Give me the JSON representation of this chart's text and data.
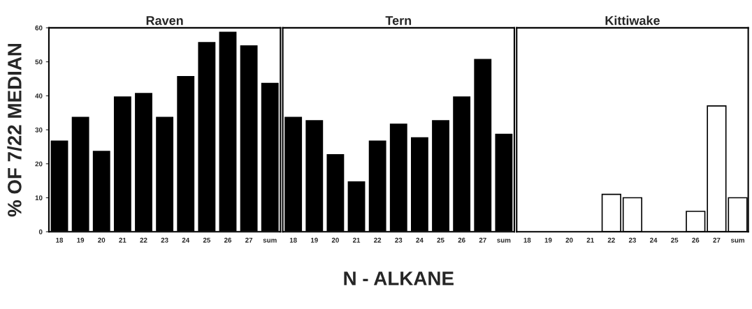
{
  "chart_data": [
    {
      "type": "bar",
      "title": "Raven",
      "ylabel": "% OF 7/22 MEDIAN",
      "categories": [
        "18",
        "19",
        "20",
        "21",
        "22",
        "23",
        "24",
        "25",
        "26",
        "27",
        "sum"
      ],
      "values": [
        27,
        34,
        24,
        40,
        41,
        34,
        46,
        56,
        59,
        55,
        44
      ],
      "color": "#000000",
      "ylim": [
        0,
        60
      ],
      "yticks": [
        0,
        10,
        20,
        30,
        40,
        50,
        60
      ]
    },
    {
      "type": "bar",
      "title": "Tern",
      "xlabel": "N - ALKANE",
      "categories": [
        "18",
        "19",
        "20",
        "21",
        "22",
        "23",
        "24",
        "25",
        "26",
        "27",
        "sum"
      ],
      "values": [
        34,
        33,
        23,
        15,
        27,
        32,
        28,
        33,
        40,
        51,
        29
      ],
      "color": "#000000",
      "ylim": [
        0,
        60
      ],
      "yticks": [
        0,
        10,
        20,
        30,
        40,
        50,
        60
      ],
      "tick_labels": "x"
    },
    {
      "type": "bar",
      "title": "Kittiwake",
      "categories": [
        "18",
        "19",
        "20",
        "21",
        "22",
        "23",
        "24",
        "25",
        "26",
        "27",
        "sum"
      ],
      "values": [
        0,
        0,
        0,
        0,
        11,
        10,
        0,
        0,
        6,
        37,
        10
      ],
      "color": "#ffffff",
      "ylim": [
        0,
        60
      ],
      "yticks": [
        0,
        10,
        20,
        30,
        40,
        50,
        60
      ],
      "tick_labels": "x"
    }
  ]
}
